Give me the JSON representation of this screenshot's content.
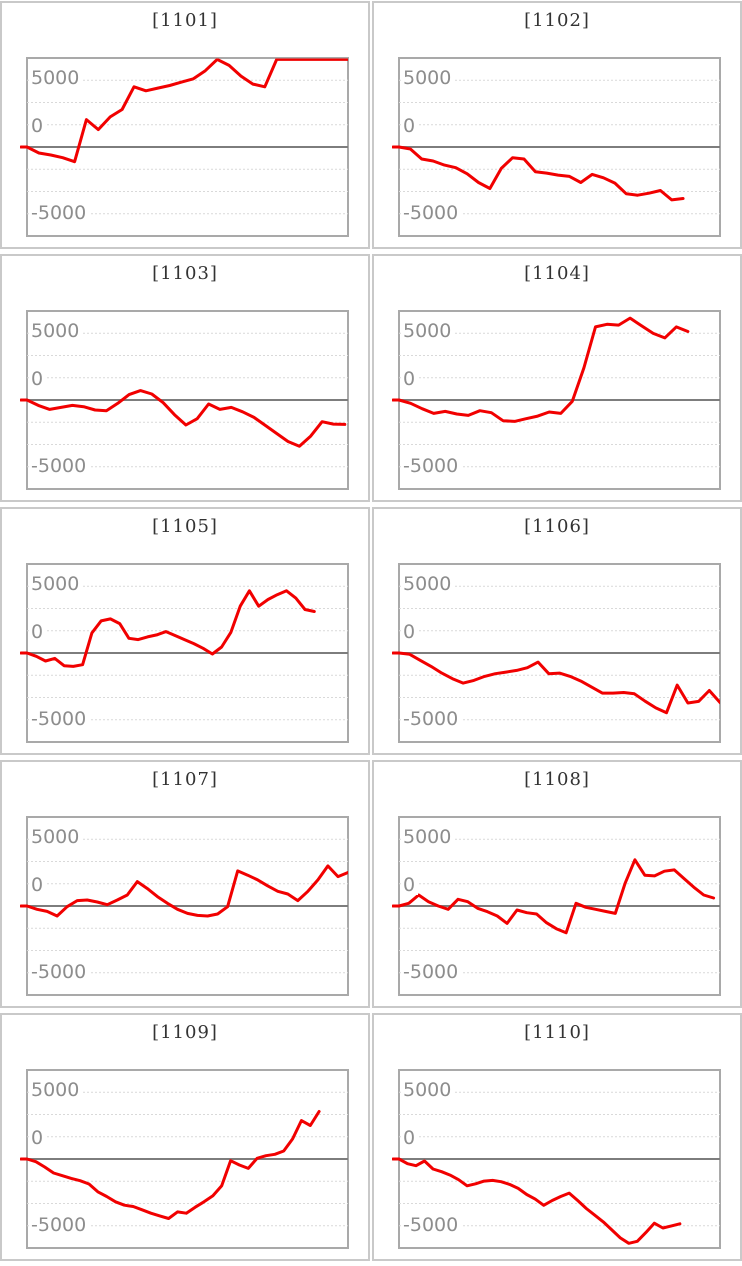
{
  "page": {
    "description": "Grid of 10 slot-machine daily payout difference line graphs",
    "background_color": "#ffffff",
    "columns": 2,
    "rows": 5
  },
  "style": {
    "panel_border_color": "#c9c9c9",
    "plot_border_color": "#a9a9a9",
    "gridline_color": "#d9d9d9",
    "zero_line_color": "#7d7d7d",
    "line_color": "#f10000",
    "title_color": "#333333",
    "tick_label_color": "#8d8d8d"
  },
  "axis": {
    "tick_labels": [
      "5000",
      "0",
      "-5000"
    ],
    "tick_values": [
      5000,
      0,
      -5000
    ],
    "ylim": [
      -6650,
      6650
    ],
    "gridlines": "7 evenly spaced dashed lines, solid dark line at 0",
    "x_axis": "hidden"
  },
  "chart_data": [
    {
      "type": "line",
      "machine_no": "1101",
      "title": "[1101]",
      "width_frac": 1.0,
      "values": [
        0,
        -450,
        -600,
        -800,
        -1100,
        2050,
        1300,
        2250,
        2800,
        4500,
        4200,
        4400,
        4600,
        4850,
        5100,
        5700,
        6550,
        6100,
        5300,
        4700,
        4500,
        6600,
        7000,
        7050,
        7050,
        7100,
        7100,
        7150
      ]
    },
    {
      "type": "line",
      "machine_no": "1102",
      "title": "[1102]",
      "width_frac": 0.885,
      "values": [
        0,
        -150,
        -900,
        -1050,
        -1350,
        -1550,
        -2000,
        -2650,
        -3100,
        -1600,
        -800,
        -900,
        -1850,
        -1950,
        -2100,
        -2200,
        -2650,
        -2050,
        -2300,
        -2700,
        -3500,
        -3600,
        -3450,
        -3250,
        -3950,
        -3850
      ]
    },
    {
      "type": "line",
      "machine_no": "1103",
      "title": "[1103]",
      "width_frac": 0.99,
      "values": [
        0,
        -400,
        -700,
        -550,
        -400,
        -500,
        -750,
        -800,
        -250,
        400,
        700,
        450,
        -200,
        -1100,
        -1870,
        -1400,
        -300,
        -700,
        -550,
        -880,
        -1300,
        -1900,
        -2500,
        -3100,
        -3450,
        -2700,
        -1620,
        -1800,
        -1820
      ]
    },
    {
      "type": "line",
      "machine_no": "1104",
      "title": "[1104]",
      "width_frac": 0.9,
      "values": [
        0,
        -250,
        -650,
        -1000,
        -850,
        -1050,
        -1150,
        -800,
        -950,
        -1550,
        -1600,
        -1400,
        -1200,
        -900,
        -1000,
        -100,
        2400,
        5460,
        5660,
        5600,
        6120,
        5540,
        4980,
        4640,
        5460,
        5120
      ]
    },
    {
      "type": "line",
      "machine_no": "1105",
      "title": "[1105]",
      "width_frac": 0.895,
      "values": [
        0,
        -250,
        -600,
        -400,
        -950,
        -1000,
        -875,
        1500,
        2400,
        2550,
        2200,
        1100,
        1000,
        1200,
        1350,
        1600,
        1300,
        1000,
        700,
        350,
        -75,
        450,
        1550,
        3500,
        4650,
        3500,
        4000,
        4360,
        4650,
        4100,
        3250,
        3100
      ]
    },
    {
      "type": "line",
      "machine_no": "1106",
      "title": "[1106]",
      "width_frac": 1.0,
      "values": [
        0,
        -100,
        -550,
        -1000,
        -1500,
        -1920,
        -2250,
        -2050,
        -1750,
        -1550,
        -1430,
        -1300,
        -1100,
        -680,
        -1550,
        -1500,
        -1750,
        -2100,
        -2550,
        -3000,
        -3000,
        -2950,
        -3050,
        -3600,
        -4100,
        -4460,
        -2400,
        -3740,
        -3620,
        -2800,
        -3700
      ]
    },
    {
      "type": "line",
      "machine_no": "1107",
      "title": "[1107]",
      "width_frac": 1.0,
      "values": [
        0,
        -250,
        -400,
        -750,
        -50,
        400,
        450,
        300,
        100,
        450,
        825,
        1825,
        1300,
        700,
        200,
        -250,
        -550,
        -700,
        -750,
        -600,
        -50,
        2620,
        2300,
        1950,
        1500,
        1100,
        900,
        400,
        1100,
        1950,
        3000,
        2200,
        2500
      ]
    },
    {
      "type": "line",
      "machine_no": "1108",
      "title": "[1108]",
      "width_frac": 0.98,
      "values": [
        0,
        200,
        825,
        325,
        0,
        -250,
        500,
        325,
        -175,
        -425,
        -750,
        -1300,
        -300,
        -500,
        -600,
        -1250,
        -1700,
        -2000,
        200,
        -100,
        -250,
        -400,
        -550,
        1700,
        3450,
        2300,
        2250,
        2600,
        2700,
        2050,
        1400,
        825,
        600
      ]
    },
    {
      "type": "line",
      "machine_no": "1109",
      "title": "[1109]",
      "width_frac": 0.91,
      "values": [
        0,
        -200,
        -600,
        -1050,
        -1250,
        -1450,
        -1620,
        -1870,
        -2450,
        -2800,
        -3200,
        -3450,
        -3550,
        -3800,
        -4050,
        -4250,
        -4450,
        -3950,
        -4050,
        -3600,
        -3200,
        -2750,
        -2000,
        -125,
        -450,
        -700,
        50,
        250,
        350,
        600,
        1500,
        2870,
        2500,
        3550
      ]
    },
    {
      "type": "line",
      "machine_no": "1110",
      "title": "[1110]",
      "width_frac": 0.875,
      "values": [
        0,
        -350,
        -500,
        -150,
        -750,
        -950,
        -1200,
        -1550,
        -2000,
        -1850,
        -1650,
        -1600,
        -1700,
        -1900,
        -2200,
        -2650,
        -3000,
        -3460,
        -3100,
        -2800,
        -2550,
        -3100,
        -3700,
        -4200,
        -4700,
        -5300,
        -5900,
        -6300,
        -6150,
        -5500,
        -4800,
        -5160,
        -5000,
        -4840
      ]
    }
  ]
}
